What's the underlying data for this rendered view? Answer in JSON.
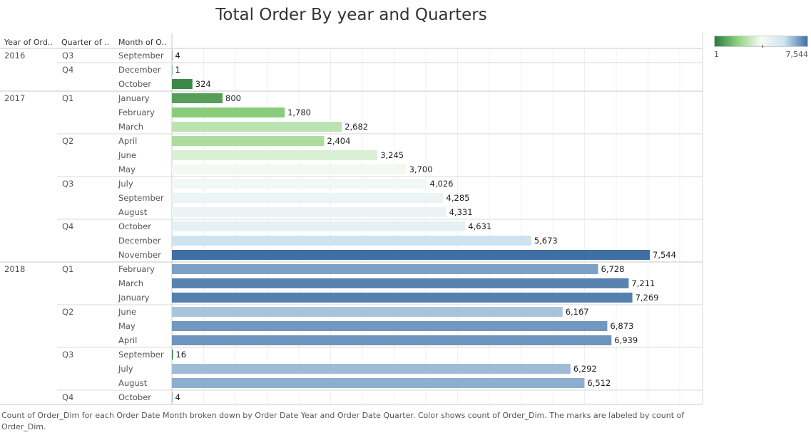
{
  "title": "Total Order By year and Quarters",
  "headers": {
    "year": "Year of Ord..",
    "quarter": "Quarter of ..",
    "month": "Month of O.."
  },
  "legend": {
    "min_label": "1",
    "max_label": "7,544",
    "colors": [
      "#2a7a3e",
      "#8fd27f",
      "#f7fbf5",
      "#cfe3f1",
      "#3f6fa3"
    ]
  },
  "caption": "Count of Order_Dim for each Order Date Month broken down by Order Date Year and Order Date Quarter.  Color shows count of Order_Dim.  The marks are labeled by count of Order_Dim.",
  "chart_data": {
    "type": "bar",
    "orientation": "horizontal",
    "measure": "Count of Order_Dim",
    "xlim": [
      0,
      7544
    ],
    "grid": true,
    "rows": [
      {
        "year": "2016",
        "quarter": "Q3",
        "month": "September",
        "value": 4,
        "label": "4"
      },
      {
        "year": "",
        "quarter": "Q4",
        "month": "December",
        "value": 1,
        "label": "1"
      },
      {
        "year": "",
        "quarter": "",
        "month": "October",
        "value": 324,
        "label": "324"
      },
      {
        "year": "2017",
        "quarter": "Q1",
        "month": "January",
        "value": 800,
        "label": "800"
      },
      {
        "year": "",
        "quarter": "",
        "month": "February",
        "value": 1780,
        "label": "1,780"
      },
      {
        "year": "",
        "quarter": "",
        "month": "March",
        "value": 2682,
        "label": "2,682"
      },
      {
        "year": "",
        "quarter": "Q2",
        "month": "April",
        "value": 2404,
        "label": "2,404"
      },
      {
        "year": "",
        "quarter": "",
        "month": "June",
        "value": 3245,
        "label": "3,245"
      },
      {
        "year": "",
        "quarter": "",
        "month": "May",
        "value": 3700,
        "label": "3,700"
      },
      {
        "year": "",
        "quarter": "Q3",
        "month": "July",
        "value": 4026,
        "label": "4,026"
      },
      {
        "year": "",
        "quarter": "",
        "month": "September",
        "value": 4285,
        "label": "4,285"
      },
      {
        "year": "",
        "quarter": "",
        "month": "August",
        "value": 4331,
        "label": "4,331"
      },
      {
        "year": "",
        "quarter": "Q4",
        "month": "October",
        "value": 4631,
        "label": "4,631"
      },
      {
        "year": "",
        "quarter": "",
        "month": "December",
        "value": 5673,
        "label": "5,673"
      },
      {
        "year": "",
        "quarter": "",
        "month": "November",
        "value": 7544,
        "label": "7,544"
      },
      {
        "year": "2018",
        "quarter": "Q1",
        "month": "February",
        "value": 6728,
        "label": "6,728"
      },
      {
        "year": "",
        "quarter": "",
        "month": "March",
        "value": 7211,
        "label": "7,211"
      },
      {
        "year": "",
        "quarter": "",
        "month": "January",
        "value": 7269,
        "label": "7,269"
      },
      {
        "year": "",
        "quarter": "Q2",
        "month": "June",
        "value": 6167,
        "label": "6,167"
      },
      {
        "year": "",
        "quarter": "",
        "month": "May",
        "value": 6873,
        "label": "6,873"
      },
      {
        "year": "",
        "quarter": "",
        "month": "April",
        "value": 6939,
        "label": "6,939"
      },
      {
        "year": "",
        "quarter": "Q3",
        "month": "September",
        "value": 16,
        "label": "16"
      },
      {
        "year": "",
        "quarter": "",
        "month": "July",
        "value": 6292,
        "label": "6,292"
      },
      {
        "year": "",
        "quarter": "",
        "month": "August",
        "value": 6512,
        "label": "6,512"
      },
      {
        "year": "",
        "quarter": "Q4",
        "month": "October",
        "value": 4,
        "label": "4"
      }
    ]
  }
}
